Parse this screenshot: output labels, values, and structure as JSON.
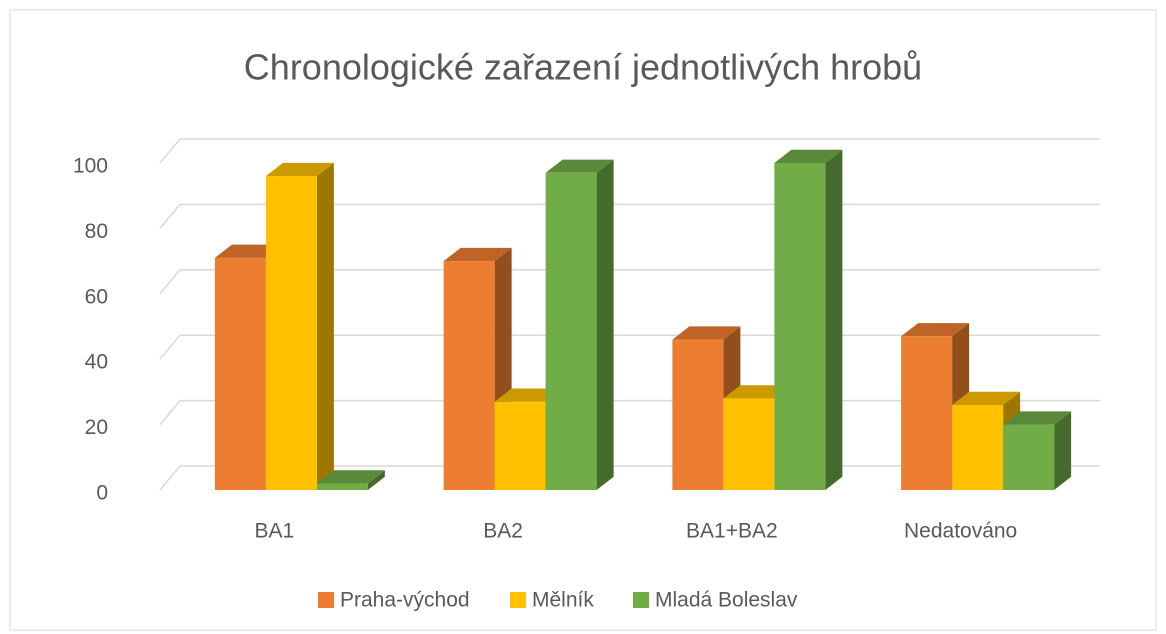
{
  "chart_data": {
    "type": "bar3d",
    "title": "Chronologické zařazení jednotlivých hrobů",
    "categories": [
      "BA1",
      "BA2",
      "BA1+BA2",
      "Nedatováno"
    ],
    "series": [
      {
        "name": "Praha-východ",
        "color": "#ed7d31",
        "values": [
          71,
          70,
          46,
          47
        ]
      },
      {
        "name": "Mělník",
        "color": "#ffc000",
        "values": [
          96,
          27,
          28,
          26
        ]
      },
      {
        "name": "Mladá Boleslav",
        "color": "#70ad47",
        "values": [
          2,
          97,
          100,
          20
        ]
      }
    ],
    "ylim": [
      0,
      100
    ],
    "yticks": [
      0,
      20,
      40,
      60,
      80,
      100
    ],
    "grid": true,
    "legend": "bottom"
  }
}
